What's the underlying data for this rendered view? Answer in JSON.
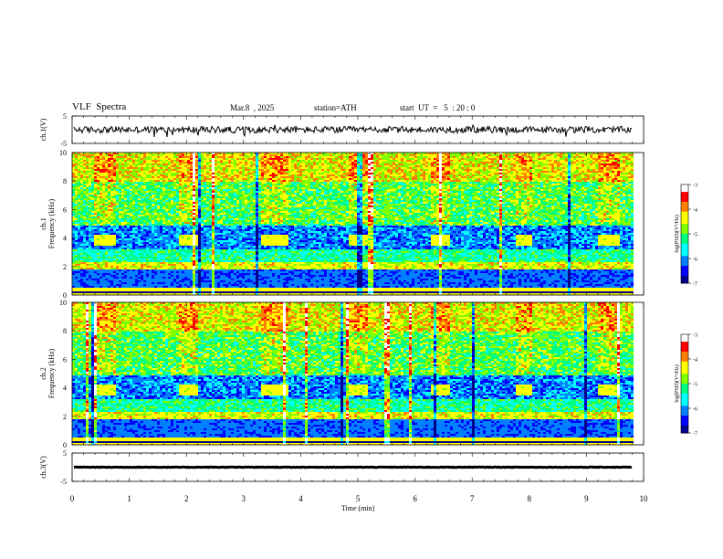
{
  "header": {
    "title": "VLF  Spectra",
    "date": "Mar.8  , 2025",
    "station": "station=ATH",
    "start": "start  UT  =   5  : 20 : 0"
  },
  "colors": {
    "axis": "#000000",
    "spectrogram_scale": [
      "#00008b",
      "#0000ff",
      "#0080ff",
      "#00ffff",
      "#00ff80",
      "#80ff00",
      "#ffff00",
      "#ff8000",
      "#ff0000",
      "#ffffff"
    ]
  },
  "chart_data": [
    {
      "type": "line",
      "ylabel": "ch.1(V)",
      "ylim": [
        -5,
        5
      ],
      "yticks": [
        "5",
        "-5"
      ],
      "x_range": [
        0,
        10
      ],
      "level": 0,
      "noise": 0.6
    },
    {
      "type": "heatmap",
      "ylabel": "ch.1\nFrequency (kHz)",
      "ylim": [
        0,
        10
      ],
      "yticks": [
        "0",
        "2",
        "4",
        "6",
        "8",
        "10"
      ],
      "x_range": [
        0,
        10
      ],
      "colorbar": {
        "label": "log(PSD)(V²/Hz)",
        "range": [
          -7,
          -3
        ],
        "ticks": [
          "-3",
          "-4",
          "-5",
          "-6",
          "-7"
        ]
      },
      "pulse_intervals_min": [
        [
          0.35,
          0.75
        ],
        [
          1.85,
          2.2
        ],
        [
          3.3,
          3.75
        ],
        [
          4.8,
          5.15
        ],
        [
          6.25,
          6.6
        ],
        [
          7.75,
          8.05
        ],
        [
          9.2,
          9.55
        ]
      ],
      "pulse_band_khz": [
        3.5,
        4.3
      ]
    },
    {
      "type": "heatmap",
      "ylabel": "ch.2\nFrequency (kHz)",
      "ylim": [
        0,
        10
      ],
      "yticks": [
        "0",
        "2",
        "4",
        "6",
        "8",
        "10"
      ],
      "x_range": [
        0,
        10
      ],
      "colorbar": {
        "label": "log(PSD)(V²/Hz)",
        "range": [
          -7,
          -3
        ],
        "ticks": [
          "-3",
          "-4",
          "-5",
          "-6",
          "-7"
        ]
      },
      "pulse_intervals_min": [
        [
          0.35,
          0.75
        ],
        [
          1.85,
          2.2
        ],
        [
          3.3,
          3.75
        ],
        [
          4.8,
          5.15
        ],
        [
          6.25,
          6.6
        ],
        [
          7.75,
          8.05
        ],
        [
          9.2,
          9.55
        ]
      ],
      "pulse_band_khz": [
        3.5,
        4.3
      ]
    },
    {
      "type": "line",
      "ylabel": "ch.3(V)",
      "ylim": [
        -5,
        5
      ],
      "yticks": [
        "5",
        "-5"
      ],
      "x_range": [
        0,
        10
      ],
      "level": 0,
      "noise": 0.05
    }
  ],
  "xaxis": {
    "label": "Time  (min)",
    "range": [
      0,
      10
    ],
    "ticks": [
      "0",
      "1",
      "2",
      "3",
      "4",
      "5",
      "6",
      "7",
      "8",
      "9",
      "10"
    ]
  }
}
